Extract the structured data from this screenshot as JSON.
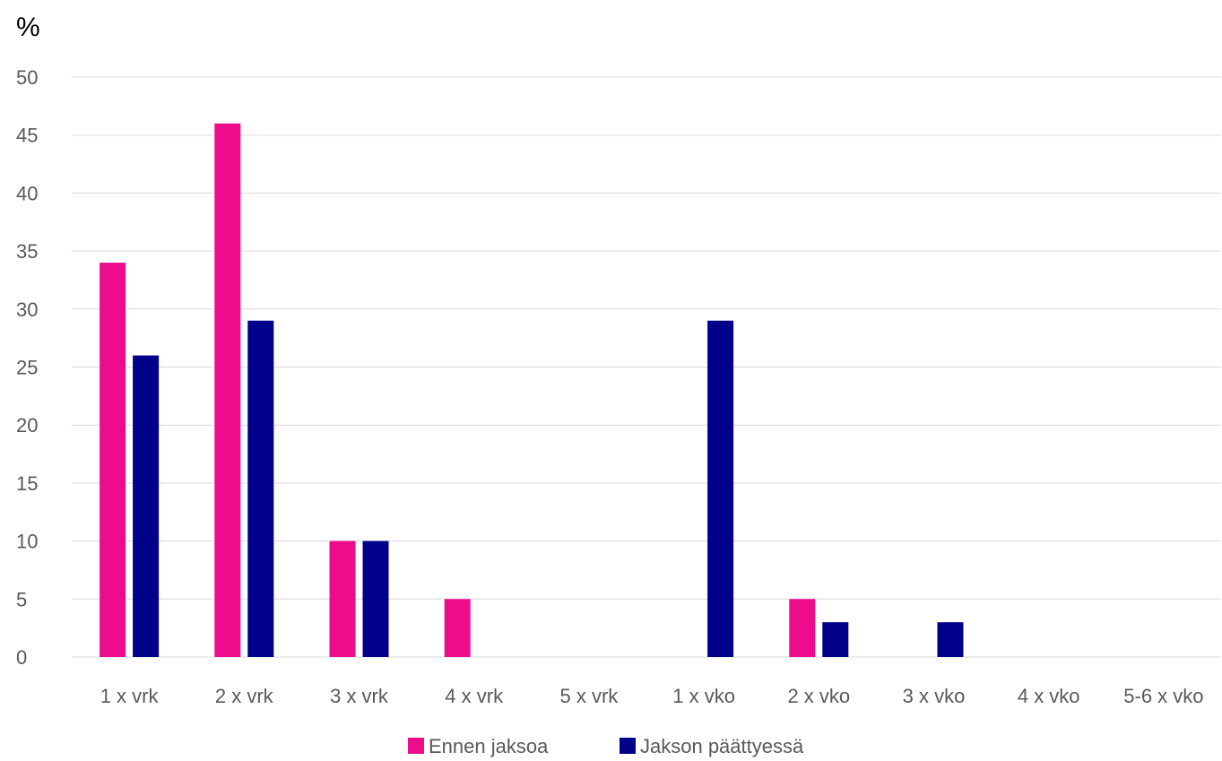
{
  "chart_data": {
    "type": "bar",
    "y_unit_label": "%",
    "categories": [
      "1 x vrk",
      "2 x vrk",
      "3 x vrk",
      "4 x vrk",
      "5 x vrk",
      "1 x vko",
      "2 x vko",
      "3 x vko",
      "4 x vko",
      "5-6 x vko"
    ],
    "series": [
      {
        "name": "Ennen jaksoa",
        "color": "#ec0c8c",
        "values": [
          34,
          46,
          10,
          5,
          0,
          0,
          5,
          0,
          0,
          0
        ]
      },
      {
        "name": "Jakson päättyessä",
        "color": "#00008b",
        "values": [
          26,
          29,
          10,
          0,
          0,
          29,
          3,
          3,
          0,
          0
        ]
      }
    ],
    "ylim": [
      0,
      50
    ],
    "yticks": [
      0,
      5,
      10,
      15,
      20,
      25,
      30,
      35,
      40,
      45,
      50
    ],
    "grid": true,
    "legend_position": "bottom"
  }
}
